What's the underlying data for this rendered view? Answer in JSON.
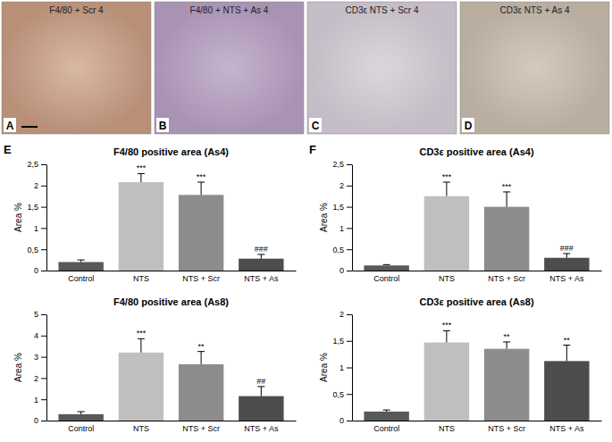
{
  "images": [
    {
      "label": "A",
      "title": "F4/80 + Scr 4"
    },
    {
      "label": "B",
      "title": "F4/80 + NTS + As 4"
    },
    {
      "label": "C",
      "title": "CD3ε NTS + Scr 4"
    },
    {
      "label": "D",
      "title": "CD3ε NTS + As 4"
    }
  ],
  "figure_labels": [
    "E",
    "F"
  ],
  "chart_data": [
    {
      "type": "bar",
      "title": "F4/80 positive area (As4)",
      "y_label": "Area %",
      "categories": [
        "Control",
        "NTS",
        "NTS + Scr",
        "NTS + As"
      ],
      "values": [
        0.2,
        2.08,
        1.78,
        0.28
      ],
      "errors": [
        0.05,
        0.2,
        0.3,
        0.1
      ],
      "annotations": [
        null,
        "***",
        "***",
        "###"
      ],
      "colors": [
        "#595959",
        "#bfbfbf",
        "#8c8c8c",
        "#4d4d4d"
      ],
      "ylim": [
        0,
        2.5
      ],
      "yticks": [
        0,
        {
          "value": 0.5,
          "label": "0,5"
        },
        1,
        {
          "value": 1.5,
          "label": "1,5"
        },
        2,
        {
          "value": 2.5,
          "label": "2,5"
        }
      ]
    },
    {
      "type": "bar",
      "title": "F4/80 positive area (As8)",
      "y_label": "Area %",
      "categories": [
        "Control",
        "NTS",
        "NTS + Scr",
        "NTS + As"
      ],
      "values": [
        0.3,
        3.2,
        2.65,
        1.15
      ],
      "errors": [
        0.12,
        0.65,
        0.6,
        0.45
      ],
      "annotations": [
        null,
        "***",
        "**",
        "##"
      ],
      "colors": [
        "#595959",
        "#bfbfbf",
        "#8c8c8c",
        "#4d4d4d"
      ],
      "ylim": [
        0,
        5
      ],
      "yticks": [
        0,
        1,
        2,
        3,
        4,
        5
      ]
    },
    {
      "type": "bar",
      "title": "CD3ε positive area (As4)",
      "y_label": "Area %",
      "categories": [
        "Control",
        "NTS",
        "NTS + Scr",
        "NTS + As"
      ],
      "values": [
        0.12,
        1.75,
        1.5,
        0.3
      ],
      "errors": [
        0.02,
        0.33,
        0.35,
        0.1
      ],
      "annotations": [
        null,
        "***",
        "***",
        "###"
      ],
      "colors": [
        "#595959",
        "#bfbfbf",
        "#8c8c8c",
        "#4d4d4d"
      ],
      "ylim": [
        0,
        2.5
      ],
      "yticks": [
        0,
        {
          "value": 0.5,
          "label": "0,5"
        },
        1,
        {
          "value": 1.5,
          "label": "1,5"
        },
        2,
        {
          "value": 2.5,
          "label": "2,5"
        }
      ]
    },
    {
      "type": "bar",
      "title": "CD3ε positive area (As8)",
      "y_label": "Area %",
      "categories": [
        "Control",
        "NTS",
        "NTS + Scr",
        "NTS + As"
      ],
      "values": [
        0.17,
        1.47,
        1.35,
        1.12
      ],
      "errors": [
        0.03,
        0.22,
        0.13,
        0.3
      ],
      "annotations": [
        null,
        "***",
        "**",
        "**"
      ],
      "colors": [
        "#595959",
        "#bfbfbf",
        "#8c8c8c",
        "#4d4d4d"
      ],
      "ylim": [
        0,
        2
      ],
      "yticks": [
        0,
        {
          "value": 0.5,
          "label": "0,5"
        },
        1,
        {
          "value": 1.5,
          "label": "1,5"
        },
        2
      ]
    }
  ]
}
